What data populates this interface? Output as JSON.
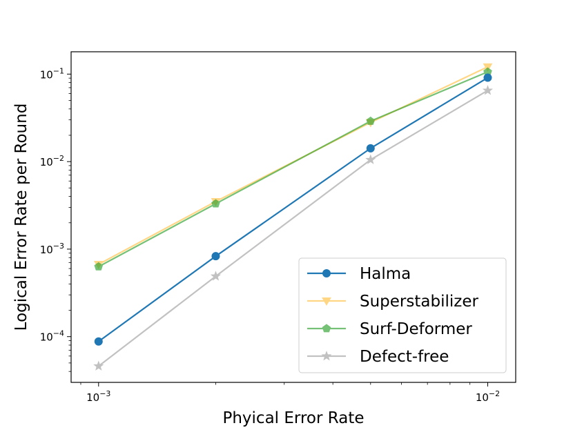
{
  "chart_data": {
    "type": "line",
    "title": "",
    "xlabel": "Phyical Error Rate",
    "ylabel": "Logical Error Rate per Round",
    "xscale": "log",
    "yscale": "log",
    "xlim": [
      0.00085,
      0.0118
    ],
    "ylim": [
      3e-05,
      0.18
    ],
    "x": [
      0.001,
      0.002,
      0.005,
      0.01
    ],
    "xticks": [
      {
        "value": 0.001,
        "base": "10",
        "exp": "−3"
      },
      {
        "value": 0.01,
        "base": "10",
        "exp": "−2"
      }
    ],
    "yticks": [
      {
        "value": 0.0001,
        "base": "10",
        "exp": "−4"
      },
      {
        "value": 0.001,
        "base": "10",
        "exp": "−3"
      },
      {
        "value": 0.01,
        "base": "10",
        "exp": "−2"
      },
      {
        "value": 0.1,
        "base": "10",
        "exp": "−1"
      }
    ],
    "grid": false,
    "legend_position": "lower right",
    "series": [
      {
        "name": "Halma",
        "values": [
          8.8e-05,
          0.00083,
          0.0142,
          0.091
        ],
        "color": "#1f77b4",
        "marker": "circle",
        "opacity": 1.0
      },
      {
        "name": "Superstabilizer",
        "values": [
          0.00067,
          0.0035,
          0.028,
          0.121
        ],
        "color": "#ffbb33",
        "marker": "triangle-down",
        "opacity": 0.6
      },
      {
        "name": "Surf-Deformer",
        "values": [
          0.00063,
          0.0033,
          0.029,
          0.106
        ],
        "color": "#2ca02c",
        "marker": "pentagon",
        "opacity": 0.65
      },
      {
        "name": "Defect-free",
        "values": [
          4.6e-05,
          0.00049,
          0.0105,
          0.065
        ],
        "color": "#999999",
        "marker": "star",
        "opacity": 0.6
      }
    ]
  }
}
